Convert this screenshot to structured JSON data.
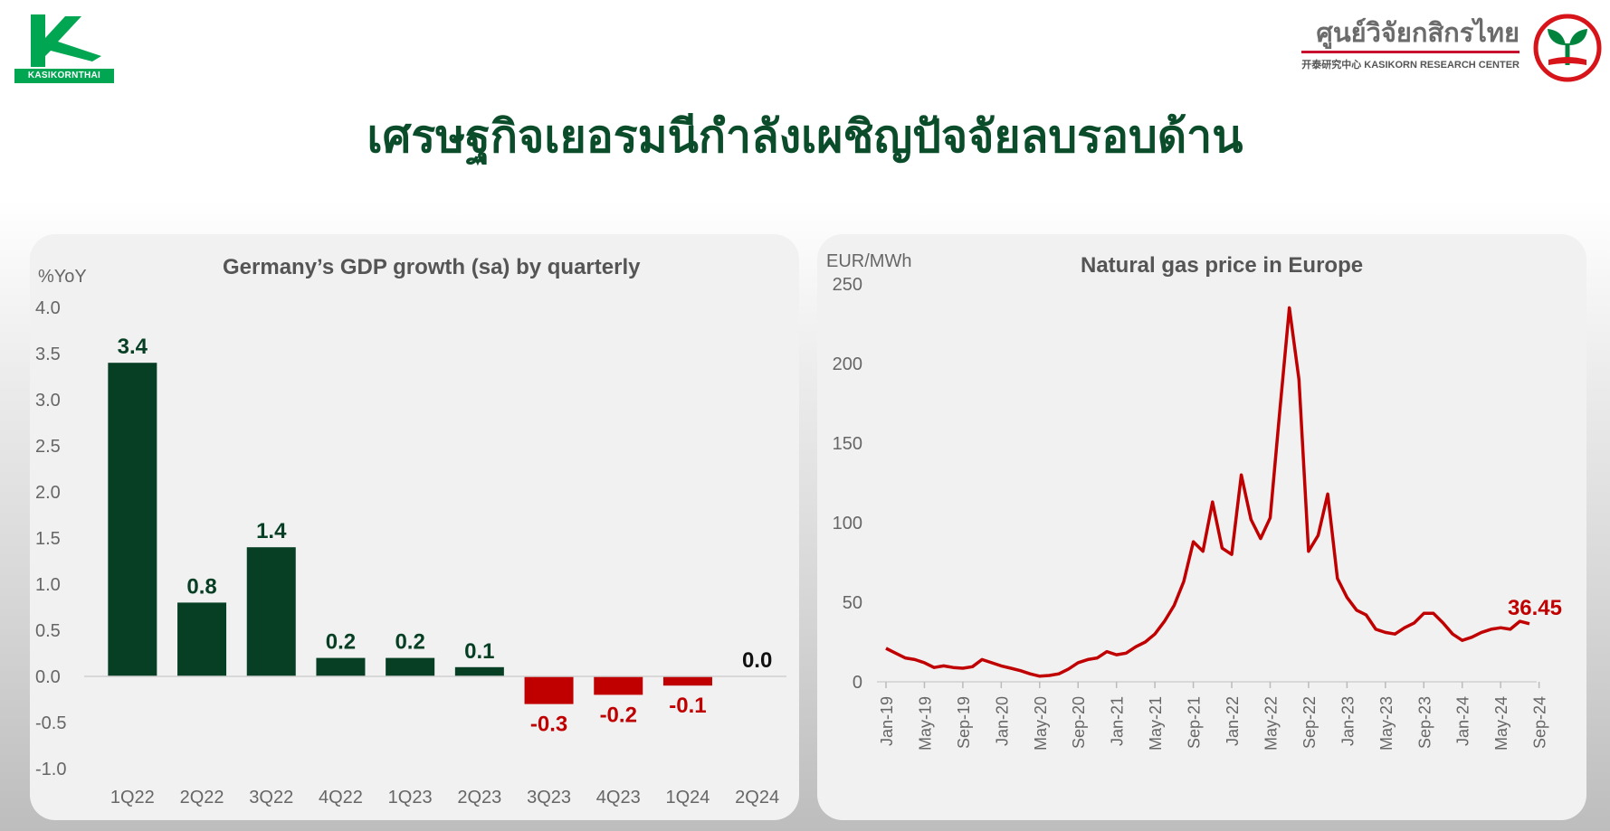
{
  "header": {
    "title": "เศรษฐกิจเยอรมนีกำลังเผชิญปัจจัยลบรอบด้าน",
    "left_logo_text": "KASIKORNTHAI",
    "right_logo_thai": "ศูนย์วิจัยกสิกรไทย",
    "right_logo_en": "开泰研究中心 KASIKORN RESEARCH CENTER"
  },
  "colors": {
    "positive_bar": "#063f24",
    "negative_bar": "#c00000",
    "line": "#c00000",
    "title_green": "#0b4d2a",
    "brand_green": "#00a651"
  },
  "chart_data": [
    {
      "type": "bar",
      "title": "Germany’s GDP growth (sa) by quarterly",
      "ylabel": "%YoY",
      "categories": [
        "1Q22",
        "2Q22",
        "3Q22",
        "4Q22",
        "1Q23",
        "2Q23",
        "3Q23",
        "4Q23",
        "1Q24",
        "2Q24"
      ],
      "values": [
        3.4,
        0.8,
        1.4,
        0.2,
        0.2,
        0.1,
        -0.3,
        -0.2,
        -0.1,
        0.0
      ],
      "data_labels": [
        "3.4",
        "0.8",
        "1.4",
        "0.2",
        "0.2",
        "0.1",
        "-0.3",
        "-0.2",
        "-0.1",
        "0.0"
      ],
      "ylim": [
        -1.0,
        4.0
      ],
      "yticks": [
        "4.0",
        "3.5",
        "3.0",
        "2.5",
        "2.0",
        "1.5",
        "1.0",
        "0.5",
        "0.0",
        "-0.5",
        "-1.0"
      ],
      "grid": false
    },
    {
      "type": "line",
      "title": "Natural gas price in Europe",
      "ylabel": "EUR/MWh",
      "ylim": [
        0,
        250
      ],
      "yticks": [
        "250",
        "200",
        "150",
        "100",
        "50",
        "0"
      ],
      "xtick_labels": [
        "Jan-19",
        "May-19",
        "Sep-19",
        "Jan-20",
        "May-20",
        "Sep-20",
        "Jan-21",
        "May-21",
        "Sep-21",
        "Jan-22",
        "May-22",
        "Sep-22",
        "Jan-23",
        "May-23",
        "Sep-23",
        "Jan-24",
        "May-24",
        "Sep-24"
      ],
      "end_label": "36.45",
      "x_start": "2019-01",
      "x_end": "2024-09",
      "values": [
        21,
        18,
        15,
        14,
        12,
        9,
        10,
        9,
        8.5,
        9.5,
        14,
        12,
        10,
        8.5,
        7,
        5,
        3.5,
        4,
        5,
        8,
        12,
        14,
        15,
        19,
        17,
        18,
        22,
        25,
        30,
        38,
        48,
        63,
        88,
        82,
        113,
        84,
        80,
        130,
        102,
        90,
        103,
        170,
        235,
        190,
        82,
        92,
        118,
        65,
        53,
        45,
        42,
        33,
        31,
        30,
        34,
        37,
        43,
        43,
        37,
        30,
        26,
        28,
        31,
        33,
        34,
        33,
        38,
        36.45
      ],
      "grid": false
    }
  ]
}
